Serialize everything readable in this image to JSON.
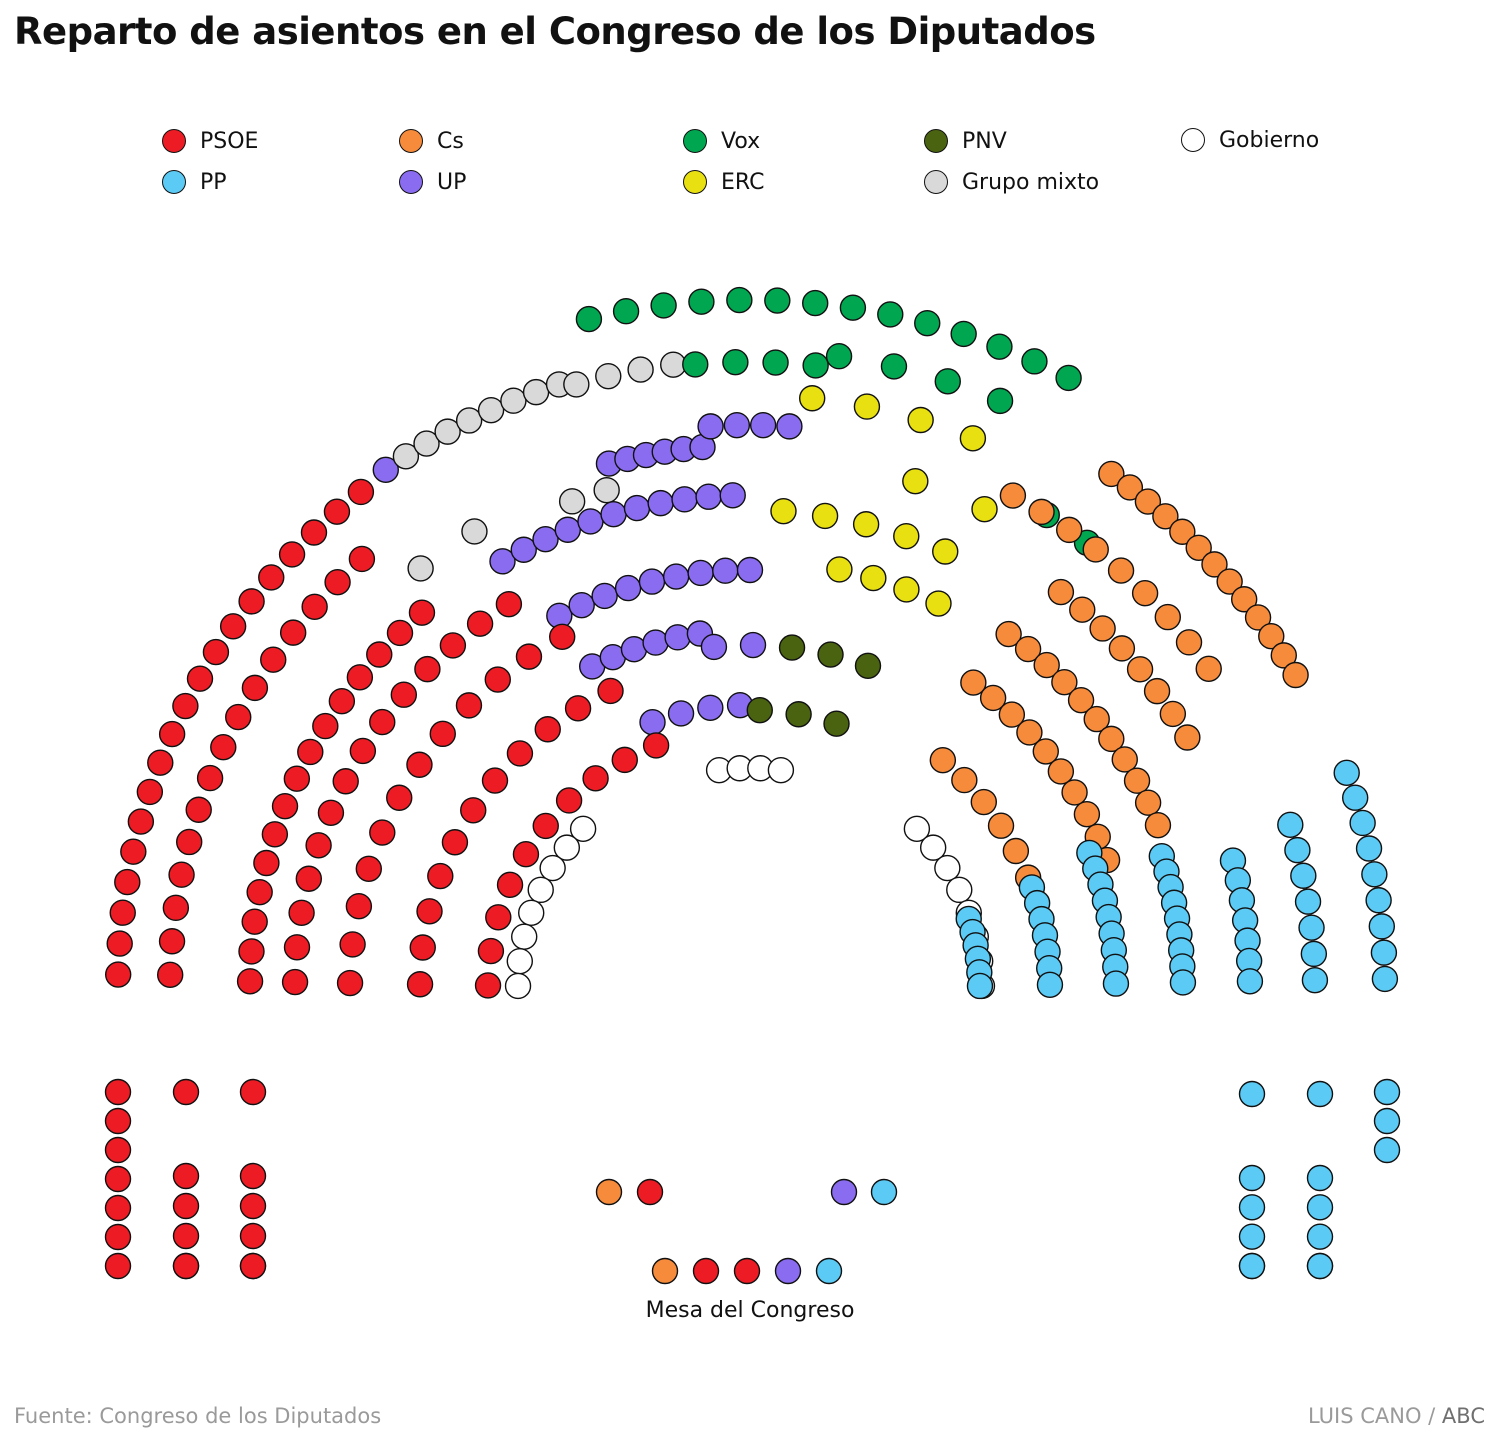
{
  "title": "Reparto de asientos en el Congreso de los Diputados",
  "legend": [
    {
      "key": "psoe",
      "label": "PSOE",
      "color": "#ed1c24"
    },
    {
      "key": "pp",
      "label": "PP",
      "color": "#5bcbf5"
    },
    {
      "key": "cs",
      "label": "Cs",
      "color": "#f68b3c"
    },
    {
      "key": "up",
      "label": "UP",
      "color": "#8a6cf0"
    },
    {
      "key": "vox",
      "label": "Vox",
      "color": "#00a650"
    },
    {
      "key": "erc",
      "label": "ERC",
      "color": "#e8e010"
    },
    {
      "key": "pnv",
      "label": "PNV",
      "color": "#4a6310"
    },
    {
      "key": "mixto",
      "label": "Grupo mixto",
      "color": "#d9d9d9"
    },
    {
      "key": "gobierno",
      "label": "Gobierno",
      "color": "#ffffff"
    }
  ],
  "mesa_label": "Mesa del Congreso",
  "source": "Fuente: Congreso de los Diputados",
  "credit": {
    "author": "LUIS CANO",
    "separator": " / ",
    "brand": "ABC"
  }
}
